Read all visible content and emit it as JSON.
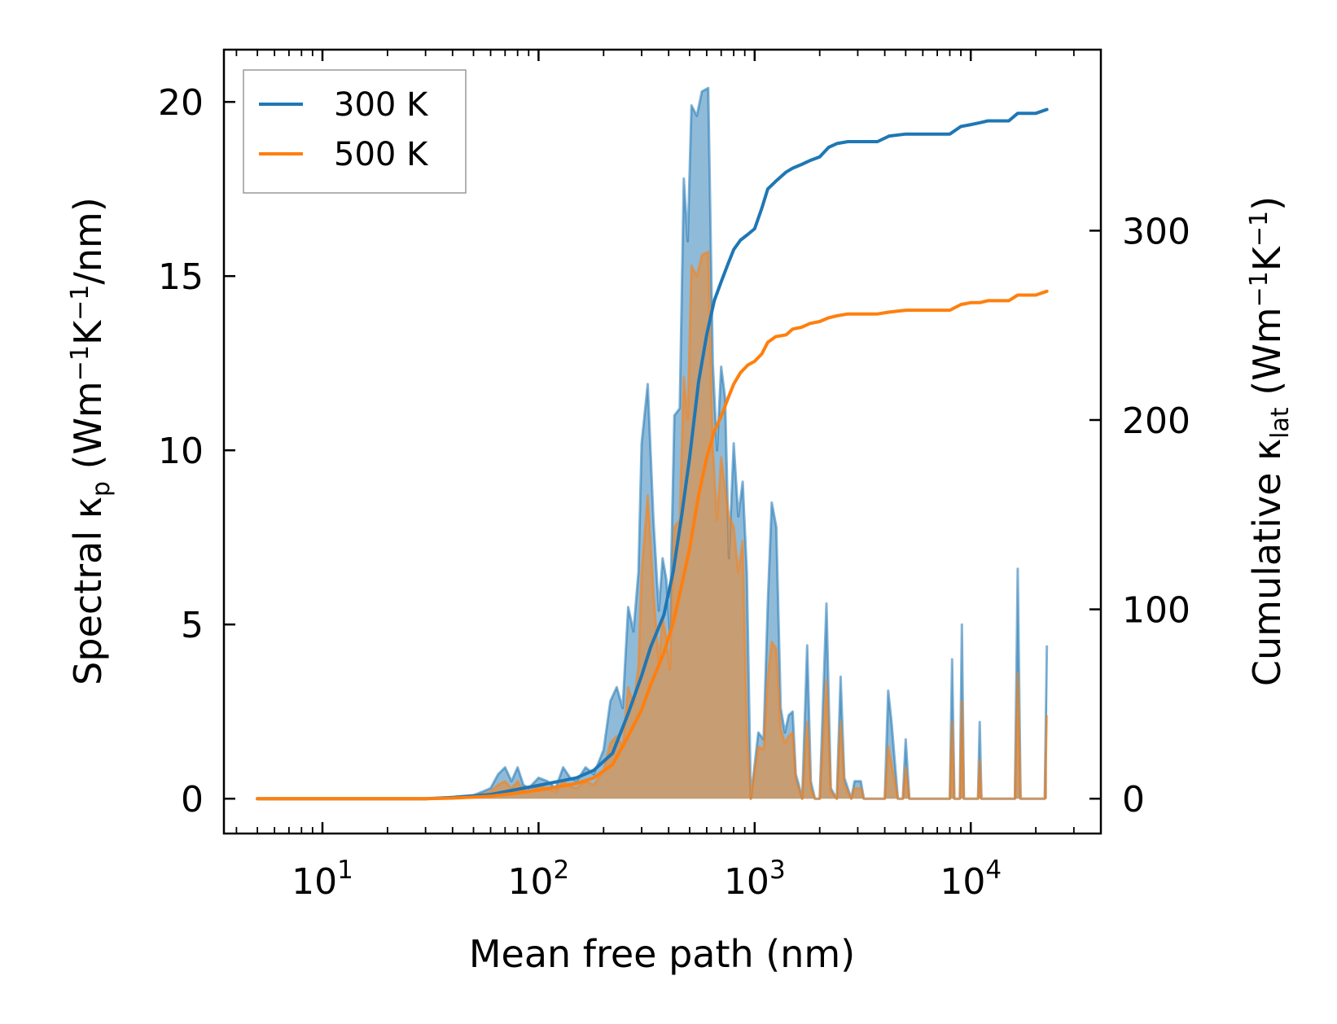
{
  "chart_data": {
    "type": "line",
    "xscale": "log",
    "xlabel": "Mean free path (nm)",
    "ylabel_left": {
      "pre": "Spectral κ",
      "sub": "p",
      "post": " (Wm",
      "sup1": "−1",
      "mid": "K",
      "sup2": "−1",
      "tail": "/nm)"
    },
    "ylabel_right": {
      "pre": "Cumulative κ",
      "sub": "lat",
      "post": " (Wm",
      "sup1": "−1",
      "mid": "K",
      "sup2": "−1",
      "tail": ")"
    },
    "xlim": [
      3.5,
      40000
    ],
    "ylim_left": [
      -1,
      21.5
    ],
    "ylim_right": [
      -18.4,
      395.6
    ],
    "x_ticks": [
      {
        "value": 10,
        "base": "10",
        "exp": "1"
      },
      {
        "value": 100,
        "base": "10",
        "exp": "2"
      },
      {
        "value": 1000,
        "base": "10",
        "exp": "3"
      },
      {
        "value": 10000,
        "base": "10",
        "exp": "4"
      }
    ],
    "y_ticks_left": [
      0,
      5,
      10,
      15,
      20
    ],
    "y_ticks_right": [
      0,
      100,
      200,
      300
    ],
    "legend": {
      "position": "top-left",
      "entries": [
        {
          "name": "300 K",
          "color": "#1f77b4"
        },
        {
          "name": "500 K",
          "color": "#ff7f0e"
        }
      ]
    },
    "series": [
      {
        "name": "300 K",
        "color": "#1f77b4",
        "spectral": [
          [
            5,
            0
          ],
          [
            30,
            0
          ],
          [
            40,
            0.05
          ],
          [
            50,
            0.1
          ],
          [
            55,
            0.2
          ],
          [
            60,
            0.3
          ],
          [
            65,
            0.7
          ],
          [
            70,
            0.9
          ],
          [
            75,
            0.5
          ],
          [
            80,
            0.9
          ],
          [
            85,
            0.4
          ],
          [
            90,
            0.3
          ],
          [
            100,
            0.6
          ],
          [
            110,
            0.5
          ],
          [
            120,
            0.3
          ],
          [
            130,
            0.9
          ],
          [
            140,
            0.6
          ],
          [
            150,
            0.5
          ],
          [
            165,
            0.9
          ],
          [
            180,
            0.7
          ],
          [
            200,
            1.4
          ],
          [
            215,
            2.8
          ],
          [
            230,
            3.2
          ],
          [
            245,
            2.6
          ],
          [
            260,
            5.5
          ],
          [
            275,
            4.8
          ],
          [
            290,
            6.5
          ],
          [
            300,
            10.2
          ],
          [
            320,
            11.9
          ],
          [
            340,
            8.0
          ],
          [
            360,
            5.4
          ],
          [
            375,
            6.9
          ],
          [
            390,
            6.3
          ],
          [
            405,
            4.8
          ],
          [
            425,
            11.0
          ],
          [
            450,
            11.2
          ],
          [
            470,
            17.8
          ],
          [
            490,
            16.0
          ],
          [
            510,
            19.9
          ],
          [
            540,
            19.6
          ],
          [
            570,
            20.3
          ],
          [
            610,
            20.4
          ],
          [
            640,
            12.5
          ],
          [
            670,
            10.0
          ],
          [
            700,
            12.4
          ],
          [
            730,
            11.5
          ],
          [
            760,
            6.9
          ],
          [
            800,
            10.2
          ],
          [
            840,
            8.1
          ],
          [
            880,
            9.1
          ],
          [
            920,
            6.5
          ],
          [
            960,
            0
          ],
          [
            1040,
            1.9
          ],
          [
            1100,
            1.7
          ],
          [
            1150,
            5.6
          ],
          [
            1200,
            8.5
          ],
          [
            1260,
            7.8
          ],
          [
            1320,
            2.6
          ],
          [
            1380,
            1.9
          ],
          [
            1440,
            2.4
          ],
          [
            1500,
            2.5
          ],
          [
            1550,
            0.7
          ],
          [
            1600,
            0.4
          ],
          [
            1660,
            0
          ],
          [
            1750,
            4.4
          ],
          [
            1820,
            0.5
          ],
          [
            1900,
            0
          ],
          [
            2000,
            0
          ],
          [
            2150,
            5.6
          ],
          [
            2250,
            0.3
          ],
          [
            2400,
            0
          ],
          [
            2500,
            3.5
          ],
          [
            2600,
            0.6
          ],
          [
            2800,
            0
          ],
          [
            2900,
            0.5
          ],
          [
            3100,
            0.5
          ],
          [
            3200,
            0
          ],
          [
            4000,
            0
          ],
          [
            4150,
            3.1
          ],
          [
            4300,
            2.2
          ],
          [
            4600,
            0
          ],
          [
            4850,
            0
          ],
          [
            5000,
            1.7
          ],
          [
            5200,
            0
          ],
          [
            8000,
            0
          ],
          [
            8200,
            4.0
          ],
          [
            8400,
            0
          ],
          [
            8900,
            0
          ],
          [
            9100,
            5.0
          ],
          [
            9300,
            0
          ],
          [
            10800,
            0
          ],
          [
            11000,
            2.2
          ],
          [
            11200,
            0
          ],
          [
            16000,
            0
          ],
          [
            16500,
            6.6
          ],
          [
            17000,
            0
          ],
          [
            22000,
            0
          ],
          [
            22500,
            4.4
          ]
        ],
        "cumulative": [
          [
            5,
            0
          ],
          [
            30,
            0
          ],
          [
            40,
            0.6
          ],
          [
            60,
            2.2
          ],
          [
            80,
            5
          ],
          [
            100,
            7
          ],
          [
            150,
            11
          ],
          [
            180,
            15
          ],
          [
            220,
            24
          ],
          [
            260,
            45
          ],
          [
            300,
            65
          ],
          [
            330,
            80
          ],
          [
            380,
            97
          ],
          [
            420,
            120
          ],
          [
            460,
            150
          ],
          [
            500,
            180
          ],
          [
            550,
            220
          ],
          [
            600,
            245
          ],
          [
            650,
            263
          ],
          [
            700,
            273
          ],
          [
            750,
            282
          ],
          [
            800,
            290
          ],
          [
            860,
            295
          ],
          [
            930,
            298
          ],
          [
            1000,
            301
          ],
          [
            1080,
            312
          ],
          [
            1150,
            322
          ],
          [
            1250,
            326
          ],
          [
            1400,
            331
          ],
          [
            1500,
            333
          ],
          [
            1650,
            335
          ],
          [
            1800,
            337
          ],
          [
            2000,
            339
          ],
          [
            2200,
            344
          ],
          [
            2400,
            346
          ],
          [
            2700,
            347
          ],
          [
            3200,
            347
          ],
          [
            3700,
            347
          ],
          [
            4200,
            350
          ],
          [
            5000,
            351
          ],
          [
            6000,
            351
          ],
          [
            7000,
            351
          ],
          [
            8000,
            351
          ],
          [
            9000,
            355
          ],
          [
            10000,
            356
          ],
          [
            11000,
            357
          ],
          [
            12000,
            358
          ],
          [
            15000,
            358
          ],
          [
            16500,
            362
          ],
          [
            20000,
            362
          ],
          [
            22500,
            364
          ]
        ]
      },
      {
        "name": "500 K",
        "color": "#ff7f0e",
        "spectral": [
          [
            5,
            0
          ],
          [
            30,
            0
          ],
          [
            40,
            0.03
          ],
          [
            50,
            0.07
          ],
          [
            55,
            0.12
          ],
          [
            60,
            0.2
          ],
          [
            65,
            0.4
          ],
          [
            70,
            0.5
          ],
          [
            75,
            0.3
          ],
          [
            80,
            0.5
          ],
          [
            85,
            0.25
          ],
          [
            90,
            0.2
          ],
          [
            100,
            0.35
          ],
          [
            110,
            0.3
          ],
          [
            120,
            0.2
          ],
          [
            130,
            0.5
          ],
          [
            140,
            0.35
          ],
          [
            150,
            0.3
          ],
          [
            165,
            0.5
          ],
          [
            180,
            0.4
          ],
          [
            200,
            0.8
          ],
          [
            215,
            1.6
          ],
          [
            230,
            1.8
          ],
          [
            245,
            1.5
          ],
          [
            260,
            3.2
          ],
          [
            275,
            2.7
          ],
          [
            290,
            3.8
          ],
          [
            300,
            6.5
          ],
          [
            320,
            8.7
          ],
          [
            340,
            5.9
          ],
          [
            360,
            3.9
          ],
          [
            375,
            5.2
          ],
          [
            390,
            4.6
          ],
          [
            405,
            3.7
          ],
          [
            425,
            7.8
          ],
          [
            450,
            8.0
          ],
          [
            470,
            12.1
          ],
          [
            490,
            10.9
          ],
          [
            510,
            15.3
          ],
          [
            540,
            15.0
          ],
          [
            570,
            15.6
          ],
          [
            610,
            15.7
          ],
          [
            640,
            10.1
          ],
          [
            670,
            8.0
          ],
          [
            700,
            9.8
          ],
          [
            730,
            8.9
          ],
          [
            760,
            8.1
          ],
          [
            800,
            7.8
          ],
          [
            840,
            6.5
          ],
          [
            880,
            7.4
          ],
          [
            920,
            2.0
          ],
          [
            960,
            0
          ],
          [
            1040,
            1.5
          ],
          [
            1100,
            1.4
          ],
          [
            1150,
            3.5
          ],
          [
            1200,
            4.5
          ],
          [
            1260,
            4.3
          ],
          [
            1320,
            2.0
          ],
          [
            1380,
            1.6
          ],
          [
            1440,
            1.8
          ],
          [
            1500,
            1.9
          ],
          [
            1550,
            0.5
          ],
          [
            1600,
            0.3
          ],
          [
            1660,
            0
          ],
          [
            1750,
            2.2
          ],
          [
            1820,
            0.3
          ],
          [
            1900,
            0
          ],
          [
            2000,
            0
          ],
          [
            2150,
            3.4
          ],
          [
            2250,
            0.2
          ],
          [
            2400,
            0
          ],
          [
            2500,
            2.2
          ],
          [
            2600,
            0.4
          ],
          [
            2800,
            0
          ],
          [
            2900,
            0.3
          ],
          [
            3100,
            0.3
          ],
          [
            3200,
            0
          ],
          [
            4000,
            0
          ],
          [
            4150,
            1.5
          ],
          [
            4300,
            1.0
          ],
          [
            4600,
            0
          ],
          [
            4850,
            0
          ],
          [
            5000,
            0.9
          ],
          [
            5200,
            0
          ],
          [
            8000,
            0
          ],
          [
            8200,
            2.2
          ],
          [
            8400,
            0
          ],
          [
            8900,
            0
          ],
          [
            9100,
            2.8
          ],
          [
            9300,
            0
          ],
          [
            10800,
            0
          ],
          [
            11000,
            1.1
          ],
          [
            11200,
            0
          ],
          [
            16000,
            0
          ],
          [
            16500,
            3.6
          ],
          [
            17000,
            0
          ],
          [
            22000,
            0
          ],
          [
            22500,
            2.4
          ]
        ],
        "cumulative": [
          [
            5,
            0
          ],
          [
            30,
            0
          ],
          [
            40,
            0.3
          ],
          [
            60,
            1.3
          ],
          [
            80,
            3
          ],
          [
            100,
            4.5
          ],
          [
            150,
            8
          ],
          [
            180,
            11
          ],
          [
            220,
            18
          ],
          [
            260,
            33
          ],
          [
            300,
            47
          ],
          [
            330,
            60
          ],
          [
            380,
            77
          ],
          [
            420,
            93
          ],
          [
            460,
            113
          ],
          [
            500,
            132
          ],
          [
            550,
            160
          ],
          [
            600,
            180
          ],
          [
            650,
            194
          ],
          [
            700,
            202
          ],
          [
            750,
            211
          ],
          [
            800,
            219
          ],
          [
            860,
            225
          ],
          [
            930,
            229
          ],
          [
            1000,
            231
          ],
          [
            1080,
            235
          ],
          [
            1150,
            241
          ],
          [
            1250,
            244
          ],
          [
            1400,
            245
          ],
          [
            1500,
            248
          ],
          [
            1650,
            249
          ],
          [
            1800,
            251
          ],
          [
            2000,
            252
          ],
          [
            2200,
            254
          ],
          [
            2400,
            255
          ],
          [
            2700,
            256
          ],
          [
            3200,
            256
          ],
          [
            3700,
            256
          ],
          [
            4200,
            257
          ],
          [
            5000,
            258
          ],
          [
            6000,
            258
          ],
          [
            7000,
            258
          ],
          [
            8000,
            258
          ],
          [
            9000,
            261
          ],
          [
            10000,
            262
          ],
          [
            11000,
            262
          ],
          [
            12000,
            263
          ],
          [
            15000,
            263
          ],
          [
            16500,
            266
          ],
          [
            20000,
            266
          ],
          [
            22500,
            268
          ]
        ]
      }
    ]
  }
}
